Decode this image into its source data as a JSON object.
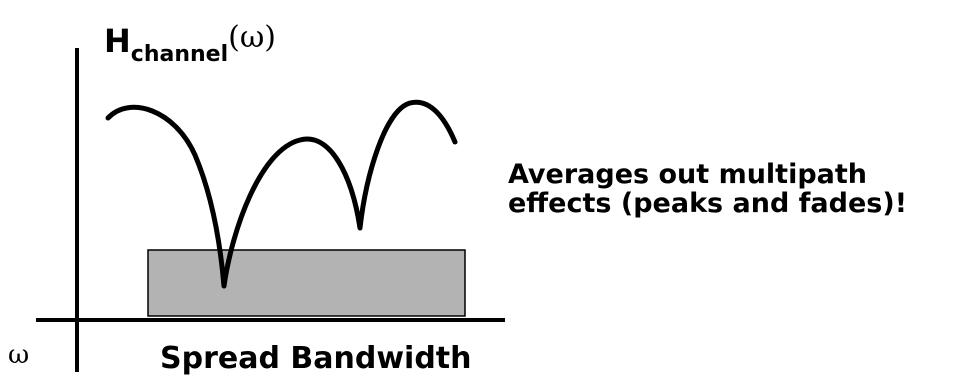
{
  "title": {
    "main": "H",
    "subscript": "channel",
    "argument": "(ω)"
  },
  "axis_symbol": "ω",
  "band_label": "Spread Bandwidth",
  "annotation": {
    "line1": "Averages out multipath",
    "line2": "effects (peaks and fades)!"
  },
  "colors": {
    "ink": "#000000",
    "band_fill": "#b3b3b3",
    "band_stroke": "#000000",
    "background": "#ffffff"
  }
}
